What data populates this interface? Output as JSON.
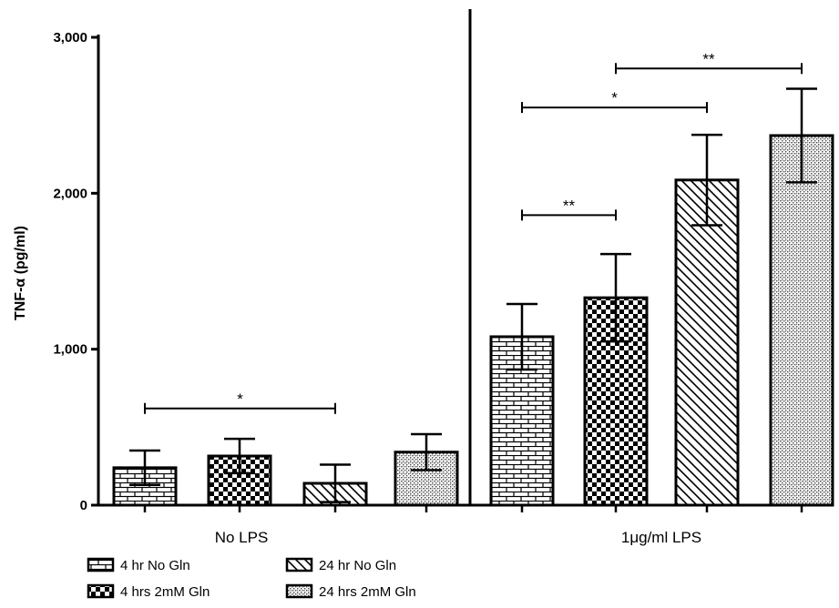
{
  "chart_data": {
    "type": "bar",
    "ylabel": "TNF-α (pg/ml)",
    "ylim": [
      0,
      3000
    ],
    "yticks": [
      {
        "value": 0,
        "label": "0"
      },
      {
        "value": 1000,
        "label": "1,000"
      },
      {
        "value": 2000,
        "label": "2,000"
      },
      {
        "value": 3000,
        "label": "3,000"
      }
    ],
    "groups": [
      "No LPS",
      "1μg/ml LPS"
    ],
    "series": [
      {
        "name": "4 hr No Gln",
        "pattern": "brick",
        "values": [
          240,
          1080
        ],
        "errors": [
          110,
          210
        ]
      },
      {
        "name": "4 hrs 2mM Gln",
        "pattern": "checker",
        "values": [
          315,
          1330
        ],
        "errors": [
          110,
          280
        ]
      },
      {
        "name": "24 hr No Gln",
        "pattern": "diagonal",
        "values": [
          140,
          2085
        ],
        "errors": [
          120,
          290
        ]
      },
      {
        "name": "24 hrs 2mM Gln",
        "pattern": "dots",
        "values": [
          340,
          2370
        ],
        "errors": [
          115,
          300
        ]
      }
    ],
    "significance": [
      {
        "group": 0,
        "from": 0,
        "to": 2,
        "label": "*",
        "y": 620
      },
      {
        "group": 1,
        "from": 0,
        "to": 1,
        "label": "**",
        "y": 1860
      },
      {
        "group": 1,
        "from": 0,
        "to": 2,
        "label": "*",
        "y": 2550
      },
      {
        "group": 1,
        "from": 1,
        "to": 3,
        "label": "**",
        "y": 2800
      }
    ],
    "legend_position": "bottom-left",
    "grid": false
  }
}
